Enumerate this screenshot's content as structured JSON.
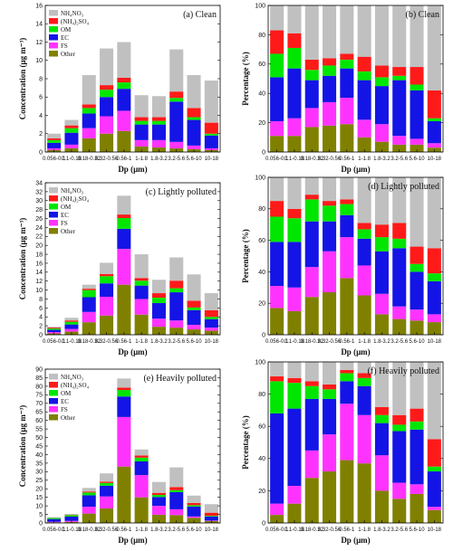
{
  "legend_labels": [
    "Other",
    "FS",
    "EC",
    "OM",
    "(NH₄)₂SO₄",
    "NH₄NO₃"
  ],
  "colors": [
    "#808000",
    "#ff33ff",
    "#1414e6",
    "#00e600",
    "#ff1a1a",
    "#c0c0c0"
  ],
  "chart_data": [
    {
      "id": "a",
      "type": "bar",
      "stacked": true,
      "title": "(a) Clean",
      "xlabel": "Dp (μm)",
      "ylabel": "Concentration (μg m⁻³)",
      "ylim": [
        0,
        16
      ],
      "yticks": [
        0,
        2,
        4,
        6,
        8,
        10,
        12,
        14,
        16
      ],
      "categories": [
        "0.056-0.1",
        "0.1-0.18",
        "0.18-0.32",
        "0.32-0.56",
        "0.56-1",
        "1-1.8",
        "1.8-3.2",
        "3.2-5.6",
        "5.6-10",
        "10-18"
      ],
      "legend": "top-left",
      "series": [
        {
          "name": "NH₄NO₃",
          "values": [
            0.2,
            0.4,
            1.5,
            2.0,
            2.3,
            0.6,
            0.5,
            0.4,
            0.3,
            0.2
          ]
        },
        {
          "name": "(NH₄)₂SO₄",
          "values": [
            0.2,
            0.4,
            1.1,
            1.9,
            2.2,
            0.7,
            0.8,
            0.7,
            0.4,
            0.2
          ]
        },
        {
          "name": "OM",
          "values": [
            0.6,
            1.3,
            1.6,
            2.1,
            2.4,
            1.7,
            1.7,
            4.4,
            2.8,
            1.4
          ]
        },
        {
          "name": "EC",
          "values": [
            0.3,
            0.5,
            0.6,
            0.8,
            0.7,
            0.4,
            0.4,
            0.4,
            0.3,
            0.2
          ]
        },
        {
          "name": "FS",
          "values": [
            0.2,
            0.3,
            0.4,
            0.5,
            0.5,
            0.4,
            0.4,
            0.7,
            1.0,
            1.2
          ]
        },
        {
          "name": "Other",
          "values": [
            0.5,
            0.6,
            3.2,
            4.0,
            3.9,
            2.4,
            2.3,
            4.6,
            3.6,
            4.6
          ]
        }
      ]
    },
    {
      "id": "b",
      "type": "bar",
      "stacked": true,
      "title": "(b) Clean",
      "xlabel": "Dp (μm)",
      "ylabel": "Percentage (%)",
      "ylim": [
        0,
        100
      ],
      "yticks": [
        0,
        20,
        40,
        60,
        80,
        100
      ],
      "categories": [
        "0.056-0.1",
        "0.1-0.18",
        "0.18-0.32",
        "0.32-0.56",
        "0.56-1",
        "1-1.8",
        "1.8-3.2",
        "3.2-5.6",
        "5.6-10",
        "10-18"
      ],
      "series": [
        {
          "name": "NH₄NO₃",
          "values": [
            11,
            11,
            17,
            18,
            19,
            10,
            7,
            5,
            5,
            3
          ]
        },
        {
          "name": "(NH₄)₂SO₄",
          "values": [
            10,
            12,
            13,
            16,
            18,
            12,
            12,
            6,
            4,
            3
          ]
        },
        {
          "name": "OM",
          "values": [
            30,
            34,
            19,
            18,
            20,
            27,
            26,
            38,
            33,
            15
          ]
        },
        {
          "name": "EC",
          "values": [
            16,
            14,
            7,
            7,
            6,
            6,
            6,
            3,
            4,
            2
          ]
        },
        {
          "name": "FS",
          "values": [
            16,
            10,
            7,
            5,
            4,
            10,
            8,
            6,
            12,
            19
          ]
        },
        {
          "name": "Other",
          "values": [
            17,
            19,
            37,
            36,
            33,
            35,
            41,
            42,
            42,
            58
          ]
        }
      ]
    },
    {
      "id": "c",
      "type": "bar",
      "stacked": true,
      "title": "(c) Lightly polluted",
      "xlabel": "Dp (μm)",
      "ylabel": "Concentration (μg m⁻³)",
      "ylim": [
        0,
        34
      ],
      "yticks": [
        0,
        2,
        4,
        6,
        8,
        10,
        12,
        14,
        16,
        18,
        20,
        22,
        24,
        26,
        28,
        30,
        32,
        34
      ],
      "categories": [
        "0.056-0.1",
        "0.1-0.18",
        "0.18-0.32",
        "0.32-0.56",
        "0.56-1",
        "1-1.8",
        "1.8-3.2",
        "3.2-5.6",
        "5.6-10",
        "10-18"
      ],
      "legend": "top-left",
      "series": [
        {
          "name": "NH₄NO₃",
          "values": [
            0.3,
            0.7,
            2.8,
            4.3,
            11.2,
            4.5,
            1.8,
            1.6,
            1.2,
            0.9
          ]
        },
        {
          "name": "(NH₄)₂SO₄",
          "values": [
            0.3,
            0.6,
            2.3,
            4.2,
            8.0,
            3.5,
            1.8,
            1.6,
            1.0,
            0.7
          ]
        },
        {
          "name": "OM",
          "values": [
            0.5,
            1.0,
            3.3,
            3.0,
            4.5,
            3.0,
            3.5,
            6.3,
            3.3,
            1.9
          ]
        },
        {
          "name": "EC",
          "values": [
            0.3,
            0.6,
            1.6,
            1.6,
            2.4,
            1.1,
            1.2,
            0.9,
            0.6,
            0.5
          ]
        },
        {
          "name": "FS",
          "values": [
            0.2,
            0.3,
            0.3,
            0.5,
            0.8,
            0.6,
            1.0,
            1.7,
            1.5,
            1.5
          ]
        },
        {
          "name": "Other",
          "values": [
            0.2,
            0.6,
            0.9,
            2.5,
            4.2,
            5.3,
            3.0,
            5.2,
            5.9,
            3.8
          ]
        }
      ]
    },
    {
      "id": "d",
      "type": "bar",
      "stacked": true,
      "title": "(d) Lightly polluted",
      "xlabel": "Dp (μm)",
      "ylabel": "Percentage (%)",
      "ylim": [
        0,
        100
      ],
      "yticks": [
        0,
        20,
        40,
        60,
        80,
        100
      ],
      "categories": [
        "0.056-0.1",
        "0.1-0.18",
        "0.18-0.32",
        "0.32-0.56",
        "0.56-1",
        "1-1.8",
        "1.8-3.2",
        "3.2-5.6",
        "5.6-10",
        "10-18"
      ],
      "series": [
        {
          "name": "NH₄NO₃",
          "values": [
            17,
            15,
            24,
            27,
            36,
            25,
            13,
            10,
            9,
            8
          ]
        },
        {
          "name": "(NH₄)₂SO₄",
          "values": [
            14,
            15,
            19,
            26,
            26,
            19,
            13,
            8,
            7,
            5
          ]
        },
        {
          "name": "OM",
          "values": [
            28,
            29,
            29,
            19,
            14,
            17,
            27,
            37,
            24,
            21
          ]
        },
        {
          "name": "EC",
          "values": [
            16,
            15,
            14,
            10,
            7,
            6,
            9,
            6,
            5,
            5
          ]
        },
        {
          "name": "FS",
          "values": [
            10,
            6,
            3,
            3,
            3,
            4,
            8,
            10,
            11,
            16
          ]
        },
        {
          "name": "Other",
          "values": [
            15,
            20,
            11,
            15,
            14,
            29,
            30,
            29,
            44,
            45
          ]
        }
      ]
    },
    {
      "id": "e",
      "type": "bar",
      "stacked": true,
      "title": "(e) Heavily polluted",
      "xlabel": "Dp (μm)",
      "ylabel": "Concentration (μg m⁻³)",
      "ylim": [
        0,
        90
      ],
      "yticks": [
        0,
        5,
        10,
        15,
        20,
        25,
        30,
        35,
        40,
        45,
        50,
        55,
        60,
        65,
        70,
        75,
        80,
        85,
        90
      ],
      "categories": [
        "0.056-0.1",
        "0.1-0.18",
        "0.18-0.32",
        "0.32-0.56",
        "0.56-1",
        "1-1.8",
        "1.8-3.2",
        "3.2-5.6",
        "5.6-10",
        "10-18"
      ],
      "legend": "top-left",
      "series": [
        {
          "name": "NH₄NO₃",
          "values": [
            0.4,
            0.6,
            5.5,
            8.5,
            33.0,
            15.0,
            4.8,
            4.6,
            3.0,
            1.1
          ]
        },
        {
          "name": "(NH₄)₂SO₄",
          "values": [
            0.3,
            0.6,
            4.0,
            7.0,
            29.0,
            13.0,
            5.2,
            3.4,
            0.8,
            0.3
          ]
        },
        {
          "name": "OM",
          "values": [
            1.6,
            2.5,
            6.7,
            6.3,
            12.0,
            8.0,
            5.2,
            10.0,
            5.8,
            2.4
          ]
        },
        {
          "name": "EC",
          "values": [
            0.6,
            0.8,
            1.6,
            1.6,
            3.8,
            2.2,
            1.2,
            1.2,
            0.8,
            0.4
          ]
        },
        {
          "name": "FS",
          "values": [
            0.1,
            0.2,
            0.6,
            0.8,
            1.4,
            1.3,
            1.2,
            1.8,
            1.3,
            1.8
          ]
        },
        {
          "name": "Other",
          "values": [
            0.4,
            0.6,
            2.1,
            4.8,
            5.3,
            3.5,
            6.4,
            11.5,
            4.3,
            5.0
          ]
        }
      ]
    },
    {
      "id": "f",
      "type": "bar",
      "stacked": true,
      "title": "(f) Heavily polluted",
      "xlabel": "Dp (μm)",
      "ylabel": "Percentage (%)",
      "ylim": [
        0,
        100
      ],
      "yticks": [
        0,
        20,
        40,
        60,
        80,
        100
      ],
      "categories": [
        "0.056-0.1",
        "0.1-0.18",
        "0.18-0.32",
        "0.32-0.56",
        "0.56-1",
        "1-1.8",
        "1.8-3.2",
        "3.2-5.6",
        "5.6-10",
        "10-18"
      ],
      "series": [
        {
          "name": "NH₄NO₃",
          "values": [
            5,
            12,
            28,
            32,
            39,
            37,
            20,
            15,
            18,
            8
          ]
        },
        {
          "name": "(NH₄)₂SO₄",
          "values": [
            7,
            11,
            17,
            23,
            35,
            30,
            22,
            10,
            6,
            2
          ]
        },
        {
          "name": "OM",
          "values": [
            56,
            48,
            32,
            22,
            14,
            18,
            20,
            32,
            34,
            22
          ]
        },
        {
          "name": "EC",
          "values": [
            20,
            16,
            8,
            6,
            5,
            5,
            5,
            4,
            5,
            3
          ]
        },
        {
          "name": "FS",
          "values": [
            3,
            3,
            3,
            3,
            2,
            3,
            5,
            6,
            8,
            17
          ]
        },
        {
          "name": "Other",
          "values": [
            9,
            10,
            12,
            14,
            5,
            7,
            28,
            33,
            29,
            48
          ]
        }
      ]
    }
  ]
}
